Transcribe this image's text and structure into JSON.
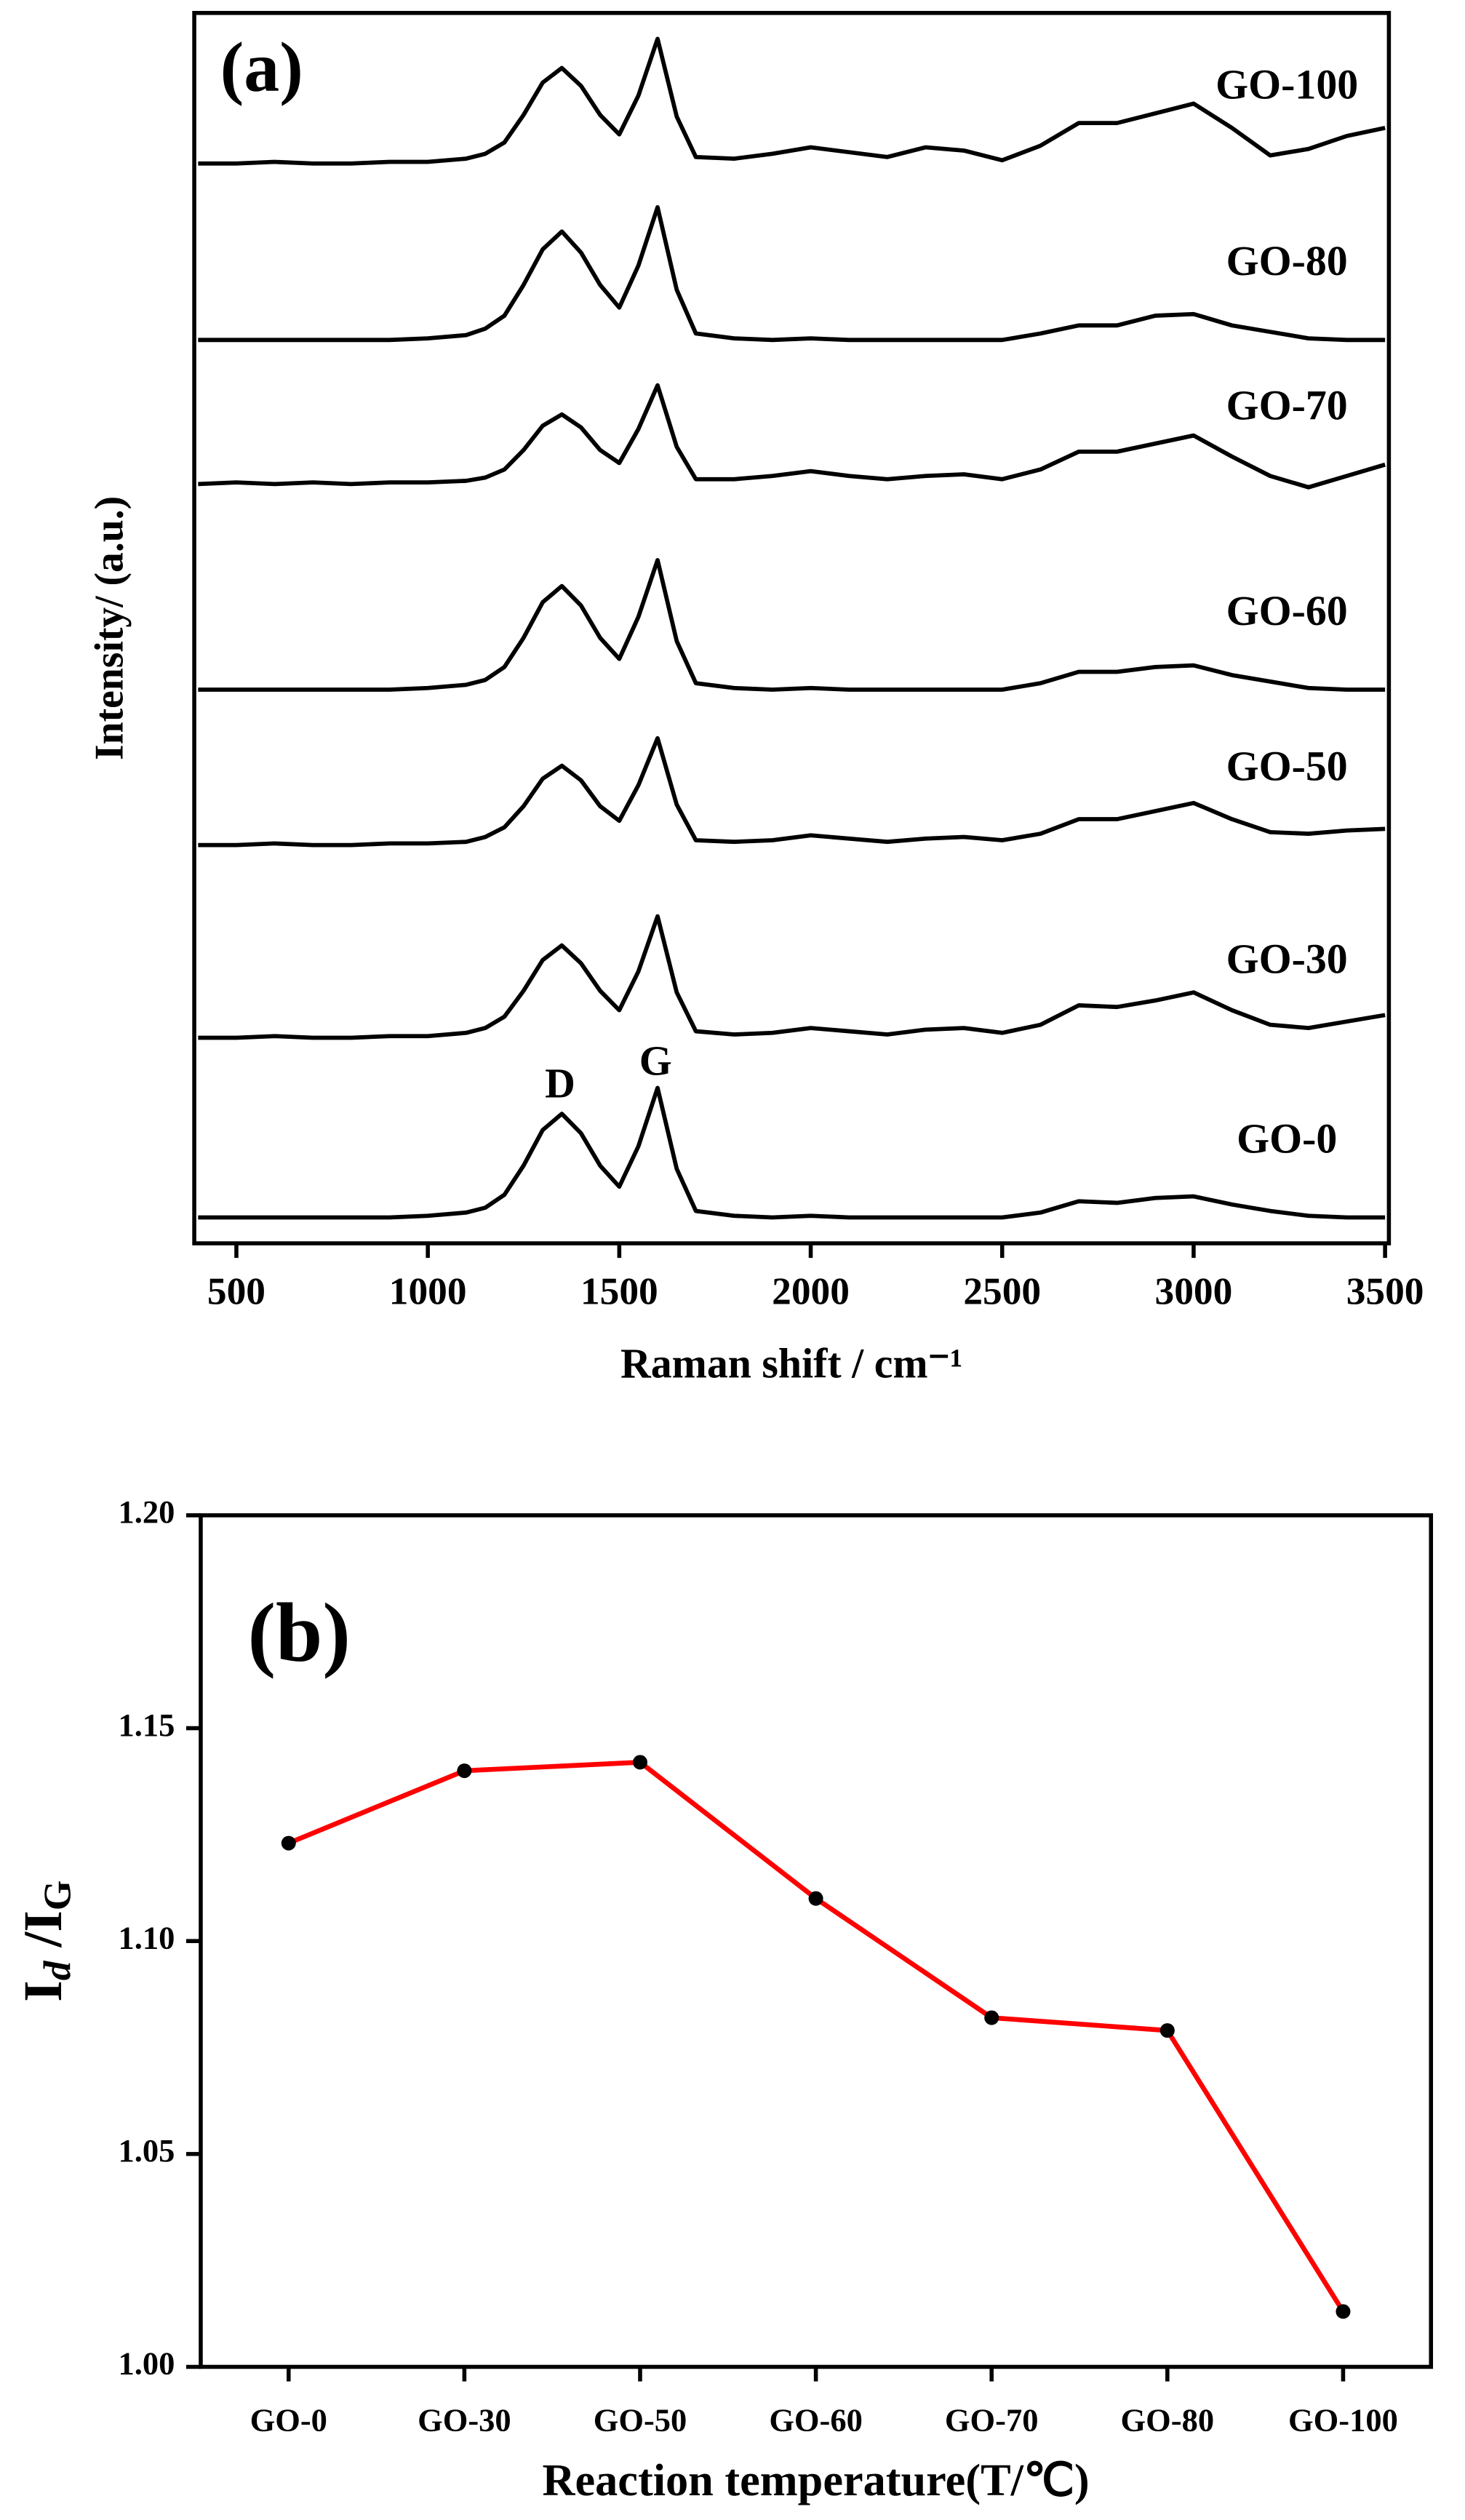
{
  "chart_data": [
    {
      "type": "line",
      "title": "(a)",
      "xlabel": "Raman shift / cm⁻¹",
      "ylabel": "Intensity/ (a.u.)",
      "x": [
        400,
        500,
        600,
        700,
        800,
        900,
        1000,
        1100,
        1150,
        1200,
        1250,
        1300,
        1350,
        1400,
        1450,
        1500,
        1550,
        1600,
        1650,
        1700,
        1800,
        1900,
        2000,
        2100,
        2200,
        2300,
        2400,
        2500,
        2600,
        2700,
        2800,
        2900,
        3000,
        3100,
        3200,
        3300,
        3400,
        3500
      ],
      "series": [
        {
          "name": "GO-100",
          "color": "#000000",
          "values": [
            667,
            667,
            668,
            667,
            667,
            668,
            668,
            670,
            673,
            680,
            697,
            717,
            726,
            715,
            697,
            685,
            709,
            744,
            696,
            671,
            670,
            673,
            677,
            674,
            671,
            677,
            675,
            669,
            678,
            692,
            692,
            698,
            704,
            689,
            672,
            676,
            684,
            689
          ]
        },
        {
          "name": "GO-80",
          "color": "#000000",
          "values": [
            558,
            558,
            558,
            558,
            558,
            558,
            559,
            561,
            565,
            573,
            592,
            614,
            625,
            612,
            592,
            578,
            604,
            640,
            589,
            562,
            559,
            558,
            559,
            558,
            558,
            558,
            558,
            558,
            562,
            567,
            567,
            573,
            574,
            567,
            563,
            559,
            558,
            558
          ]
        },
        {
          "name": "GO-70",
          "color": "#000000",
          "values": [
            469,
            470,
            469,
            470,
            469,
            470,
            470,
            471,
            473,
            478,
            490,
            505,
            512,
            504,
            490,
            482,
            503,
            530,
            492,
            472,
            472,
            474,
            477,
            474,
            472,
            474,
            475,
            472,
            478,
            489,
            489,
            494,
            499,
            486,
            474,
            467,
            474,
            481
          ]
        },
        {
          "name": "GO-60",
          "color": "#000000",
          "values": [
            342,
            342,
            342,
            342,
            342,
            342,
            343,
            345,
            348,
            356,
            374,
            396,
            406,
            394,
            374,
            361,
            387,
            422,
            372,
            346,
            343,
            342,
            343,
            342,
            342,
            342,
            342,
            342,
            346,
            353,
            353,
            356,
            357,
            351,
            347,
            343,
            342,
            342
          ]
        },
        {
          "name": "GO-50",
          "color": "#000000",
          "values": [
            246,
            246,
            247,
            246,
            246,
            247,
            247,
            248,
            251,
            257,
            270,
            287,
            295,
            286,
            270,
            261,
            283,
            312,
            271,
            249,
            248,
            249,
            252,
            250,
            248,
            250,
            251,
            249,
            253,
            262,
            262,
            267,
            272,
            262,
            254,
            253,
            255,
            256
          ]
        },
        {
          "name": "GO-30",
          "color": "#000000",
          "values": [
            127,
            127,
            128,
            127,
            127,
            128,
            128,
            130,
            133,
            140,
            156,
            175,
            184,
            173,
            156,
            144,
            168,
            202,
            155,
            131,
            129,
            130,
            133,
            131,
            129,
            132,
            133,
            130,
            135,
            147,
            146,
            150,
            155,
            144,
            135,
            133,
            137,
            141
          ]
        },
        {
          "name": "GO-0",
          "color": "#000000",
          "values": [
            16,
            16,
            16,
            16,
            16,
            16,
            17,
            19,
            22,
            30,
            48,
            70,
            80,
            68,
            48,
            35,
            60,
            96,
            46,
            20,
            17,
            16,
            17,
            16,
            16,
            16,
            16,
            16,
            19,
            26,
            25,
            28,
            29,
            24,
            20,
            17,
            16,
            16
          ]
        }
      ],
      "xlim": [
        390,
        3510
      ],
      "xticks": [
        500,
        1000,
        1500,
        2000,
        2500,
        3000,
        3500
      ],
      "ylim": [
        0,
        760
      ],
      "annotations": [
        "D",
        "G"
      ]
    },
    {
      "type": "line",
      "title": "(b)",
      "xlabel": "Reaction temperature(T/℃)",
      "ylabel_parts": [
        "I",
        "d",
        " /I",
        "G"
      ],
      "categories": [
        "GO-0",
        "GO-30",
        "GO-50",
        "GO-60",
        "GO-70",
        "GO-80",
        "GO-100"
      ],
      "values": [
        1.123,
        1.14,
        1.142,
        1.11,
        1.082,
        1.079,
        1.013
      ],
      "color": "#ff0000",
      "marker_color": "#000000",
      "ylim": [
        1.0,
        1.2
      ],
      "yticks": [
        {
          "value": 1,
          "label": "1.00"
        },
        1.05,
        {
          "value": 1.1,
          "label": "1.10"
        },
        1.15,
        {
          "value": 1.2,
          "label": "1.20"
        }
      ]
    }
  ]
}
